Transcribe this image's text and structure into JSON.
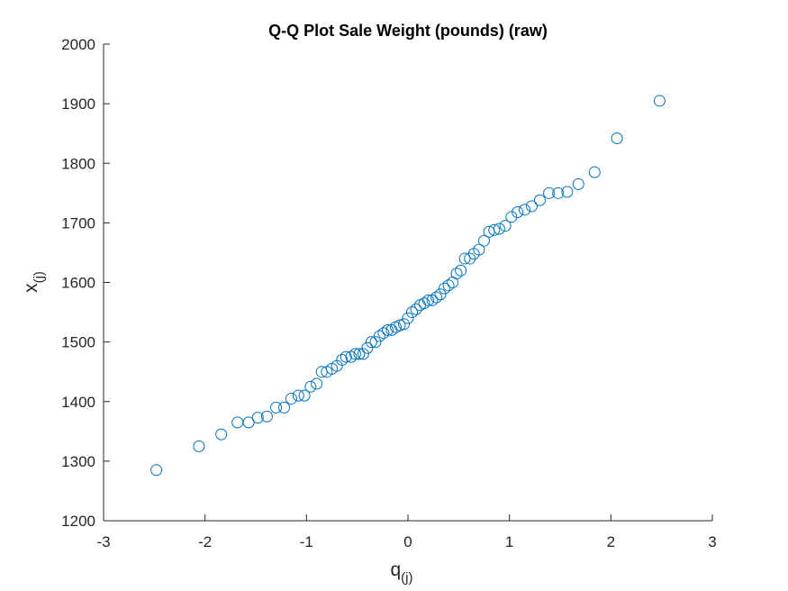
{
  "chart_data": {
    "type": "scatter",
    "title": "Q-Q Plot Sale Weight (pounds) (raw)",
    "xlabel": {
      "main": "q",
      "sub": "(j)"
    },
    "ylabel": {
      "main": "x",
      "sub": "(j)"
    },
    "xlim": [
      -3,
      3
    ],
    "ylim": [
      1200,
      2000
    ],
    "xticks": [
      -3,
      -2,
      -1,
      0,
      1,
      2,
      3
    ],
    "yticks": [
      1200,
      1300,
      1400,
      1500,
      1600,
      1700,
      1800,
      1900,
      2000
    ],
    "grid": false,
    "marker": "open-circle",
    "marker_color": "#0072BD",
    "axis_color": "#262626",
    "series": [
      {
        "x": [
          -2.48,
          -2.06,
          -1.84,
          -1.68,
          -1.57,
          -1.48,
          -1.39,
          -1.3,
          -1.22,
          -1.15,
          -1.08,
          -1.02,
          -0.96,
          -0.9,
          -0.85,
          -0.8,
          -0.75,
          -0.7,
          -0.65,
          -0.61,
          -0.56,
          -0.52,
          -0.48,
          -0.44,
          -0.4,
          -0.36,
          -0.32,
          -0.28,
          -0.24,
          -0.2,
          -0.16,
          -0.12,
          -0.08,
          -0.04,
          0.0,
          0.04,
          0.08,
          0.12,
          0.16,
          0.2,
          0.24,
          0.28,
          0.32,
          0.36,
          0.4,
          0.44,
          0.48,
          0.52,
          0.56,
          0.61,
          0.65,
          0.7,
          0.75,
          0.8,
          0.85,
          0.9,
          0.96,
          1.02,
          1.08,
          1.15,
          1.22,
          1.3,
          1.39,
          1.48,
          1.57,
          1.68,
          1.84,
          2.06,
          2.48
        ],
        "y": [
          1285,
          1325,
          1345,
          1365,
          1365,
          1373,
          1375,
          1390,
          1390,
          1405,
          1410,
          1410,
          1425,
          1430,
          1450,
          1450,
          1455,
          1460,
          1470,
          1475,
          1475,
          1480,
          1480,
          1480,
          1490,
          1500,
          1500,
          1510,
          1515,
          1520,
          1520,
          1525,
          1528,
          1530,
          1540,
          1550,
          1555,
          1562,
          1565,
          1570,
          1570,
          1575,
          1580,
          1590,
          1595,
          1600,
          1615,
          1620,
          1640,
          1640,
          1648,
          1655,
          1670,
          1685,
          1688,
          1690,
          1695,
          1710,
          1718,
          1722,
          1728,
          1738,
          1750,
          1750,
          1752,
          1765,
          1785,
          1842,
          1905
        ]
      }
    ]
  }
}
